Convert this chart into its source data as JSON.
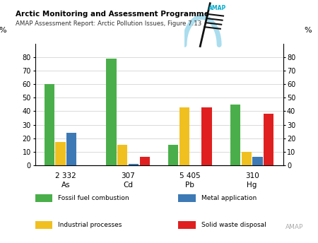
{
  "elements": [
    "As",
    "Cd",
    "Pb",
    "Hg"
  ],
  "amounts": [
    "2 332",
    "307",
    "5 405",
    "310"
  ],
  "categories": [
    "Fossil fuel combustion",
    "Industrial processes",
    "Metal application",
    "Solid waste disposal"
  ],
  "colors": [
    "#4aaf4a",
    "#f0c020",
    "#3d7ab5",
    "#e02020"
  ],
  "values": [
    [
      60,
      17,
      24,
      0
    ],
    [
      79,
      15,
      1,
      6
    ],
    [
      15,
      43,
      0,
      43
    ],
    [
      45,
      10,
      6,
      38
    ]
  ],
  "ylim": [
    0,
    90
  ],
  "yticks": [
    0,
    10,
    20,
    30,
    40,
    50,
    60,
    70,
    80
  ],
  "ylabel": "%",
  "title_main": "Arctic Monitoring and Assessment Programme",
  "title_sub": "AMAP Assessment Report: Arctic Pollution Issues, Figure 7.13",
  "bg_color": "#ffffff",
  "bar_width": 0.18,
  "legend_left": [
    "Fossil fuel combustion",
    "Industrial processes"
  ],
  "legend_right": [
    "Metal application",
    "Solid waste disposal"
  ],
  "legend_colors_left": [
    "#4aaf4a",
    "#f0c020"
  ],
  "legend_colors_right": [
    "#3d7ab5",
    "#e02020"
  ]
}
